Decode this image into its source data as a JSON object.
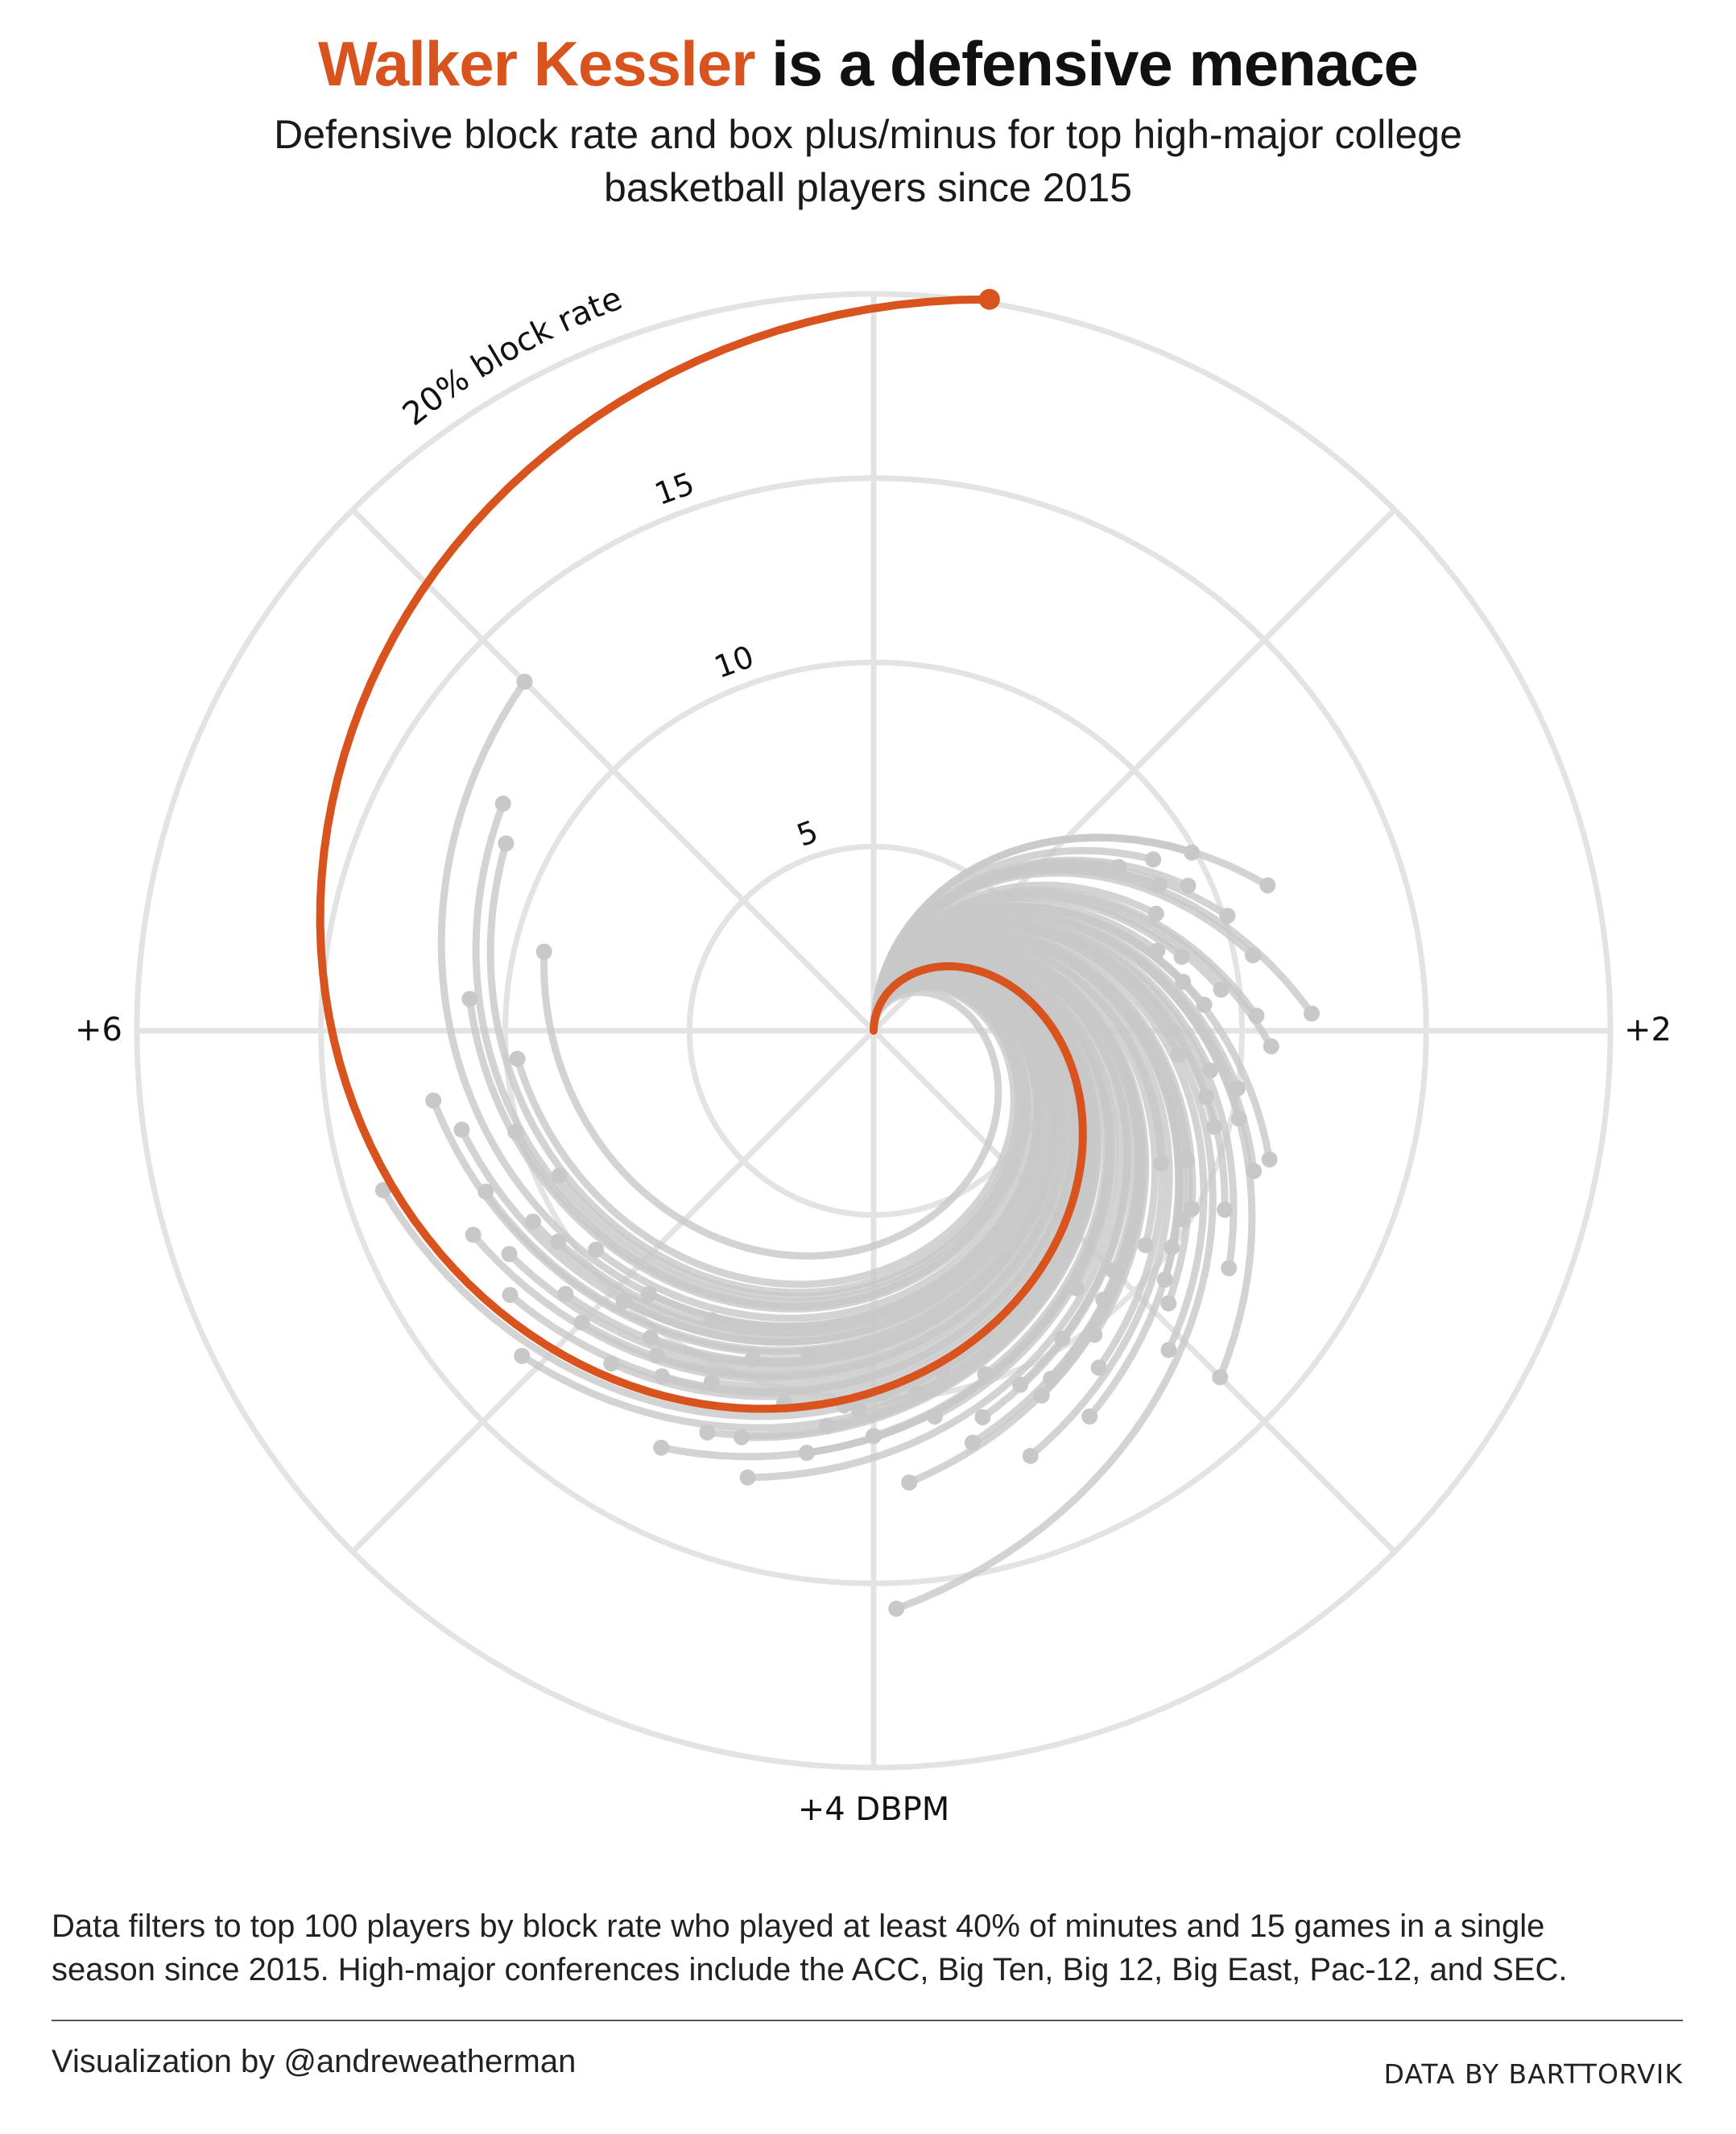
{
  "header": {
    "title_highlight": "Walker Kessler",
    "title_rest": " is a defensive menace",
    "subtitle_line1": "Defensive block rate and box plus/minus for top high-major college",
    "subtitle_line2": "basketball players since 2015"
  },
  "footer": {
    "note_line1": "Data filters to top 100 players by block rate who played at least 40% of minutes and 15 games in a single",
    "note_line2": "season since 2015. High-major conferences include the ACC, Big Ten, Big 12, Big East, Pac-12, and SEC.",
    "credit": "Visualization by @andreweatherman",
    "source": "DATA BY BARTTORVIK"
  },
  "colors": {
    "highlight": "#d9531e",
    "others": "#c8c8c8",
    "grid": "#e3e3e3",
    "text": "#111111"
  },
  "chart_data": {
    "type": "scatter",
    "title": "Walker Kessler is a defensive menace",
    "subtitle": "Defensive block rate and box plus/minus for top high-major college basketball players since 2015",
    "coordinate_system": "polar spiral (angle = DBPM, radius = block rate)",
    "radial_axis": {
      "label": "20% block rate",
      "range": [
        0,
        20
      ],
      "ticks": [
        5,
        10,
        15
      ]
    },
    "angular_axis": {
      "labels": [
        "+2",
        "+4 DBPM",
        "+6"
      ],
      "range": [
        0,
        8
      ]
    },
    "radial_tick_labels": [
      "5",
      "10",
      "15"
    ],
    "highlight": {
      "name": "Walker Kessler",
      "dbpm": 8.2,
      "block_rate": 20.1
    },
    "others": [
      {
        "dbpm": 7.0,
        "block_rate": 13.4
      },
      {
        "dbpm": 6.7,
        "block_rate": 11.8
      },
      {
        "dbpm": 6.6,
        "block_rate": 11.2
      },
      {
        "dbpm": 1.25,
        "block_rate": 8.0
      },
      {
        "dbpm": 1.2,
        "block_rate": 7.5
      },
      {
        "dbpm": 5.9,
        "block_rate": 9.7
      },
      {
        "dbpm": 5.8,
        "block_rate": 12.1
      },
      {
        "dbpm": 5.7,
        "block_rate": 11.5
      },
      {
        "dbpm": 5.6,
        "block_rate": 14.0
      },
      {
        "dbpm": 5.4,
        "block_rate": 12.2
      },
      {
        "dbpm": 5.5,
        "block_rate": 11.4
      },
      {
        "dbpm": 5.3,
        "block_rate": 11.6
      },
      {
        "dbpm": 5.2,
        "block_rate": 12.2
      },
      {
        "dbpm": 5.1,
        "block_rate": 11.0
      },
      {
        "dbpm": 5.0,
        "block_rate": 11.2
      },
      {
        "dbpm": 4.9,
        "block_rate": 9.4
      },
      {
        "dbpm": 4.8,
        "block_rate": 10.3
      },
      {
        "dbpm": 4.7,
        "block_rate": 11.0
      },
      {
        "dbpm": 4.6,
        "block_rate": 12.7
      },
      {
        "dbpm": 4.5,
        "block_rate": 11.8
      },
      {
        "dbpm": 4.4,
        "block_rate": 11.6
      },
      {
        "dbpm": 4.3,
        "block_rate": 10.4
      },
      {
        "dbpm": 4.2,
        "block_rate": 11.6
      },
      {
        "dbpm": 4.1,
        "block_rate": 10.2
      },
      {
        "dbpm": 4.0,
        "block_rate": 11.0
      },
      {
        "dbpm": 3.95,
        "block_rate": 15.7
      },
      {
        "dbpm": 3.9,
        "block_rate": 12.3
      },
      {
        "dbpm": 3.8,
        "block_rate": 10.6
      },
      {
        "dbpm": 3.7,
        "block_rate": 11.5
      },
      {
        "dbpm": 3.6,
        "block_rate": 9.8
      },
      {
        "dbpm": 3.5,
        "block_rate": 10.4
      },
      {
        "dbpm": 3.4,
        "block_rate": 10.6
      },
      {
        "dbpm": 3.3,
        "block_rate": 9.8
      },
      {
        "dbpm": 3.2,
        "block_rate": 10.2
      },
      {
        "dbpm": 3.1,
        "block_rate": 9.6
      },
      {
        "dbpm": 3.0,
        "block_rate": 13.3
      },
      {
        "dbpm": 2.9,
        "block_rate": 10.4
      },
      {
        "dbpm": 2.85,
        "block_rate": 9.4
      },
      {
        "dbpm": 2.8,
        "block_rate": 10.0
      },
      {
        "dbpm": 2.7,
        "block_rate": 9.8
      },
      {
        "dbpm": 2.6,
        "block_rate": 10.7
      },
      {
        "dbpm": 2.5,
        "block_rate": 9.2
      },
      {
        "dbpm": 2.4,
        "block_rate": 11.3
      },
      {
        "dbpm": 2.3,
        "block_rate": 10.2
      },
      {
        "dbpm": 2.25,
        "block_rate": 9.2
      },
      {
        "dbpm": 2.15,
        "block_rate": 9.2
      },
      {
        "dbpm": 2.1,
        "block_rate": 8.3
      },
      {
        "dbpm": 2.0,
        "block_rate": 8.1
      },
      {
        "dbpm": 1.95,
        "block_rate": 11.9
      },
      {
        "dbpm": 1.9,
        "block_rate": 9.0
      },
      {
        "dbpm": 1.85,
        "block_rate": 9.5
      },
      {
        "dbpm": 1.8,
        "block_rate": 8.5
      },
      {
        "dbpm": 1.7,
        "block_rate": 8.6
      },
      {
        "dbpm": 1.65,
        "block_rate": 8.0
      },
      {
        "dbpm": 1.6,
        "block_rate": 10.1
      },
      {
        "dbpm": 1.55,
        "block_rate": 11.4
      },
      {
        "dbpm": 1.5,
        "block_rate": 8.3
      },
      {
        "dbpm": 1.45,
        "block_rate": 9.4
      },
      {
        "dbpm": 1.4,
        "block_rate": 8.7
      },
      {
        "dbpm": 1.95,
        "block_rate": 10.4
      },
      {
        "dbpm": 2.05,
        "block_rate": 10.8
      },
      {
        "dbpm": 3.05,
        "block_rate": 11.8
      },
      {
        "dbpm": 3.45,
        "block_rate": 10.9
      },
      {
        "dbpm": 3.55,
        "block_rate": 12.3
      },
      {
        "dbpm": 4.05,
        "block_rate": 10.3
      },
      {
        "dbpm": 4.35,
        "block_rate": 12.6
      },
      {
        "dbpm": 4.55,
        "block_rate": 10.5
      },
      {
        "dbpm": 4.75,
        "block_rate": 10.6
      },
      {
        "dbpm": 5.25,
        "block_rate": 10.3
      },
      {
        "dbpm": 5.45,
        "block_rate": 9.4
      },
      {
        "dbpm": 6.1,
        "block_rate": 11.0
      },
      {
        "dbpm": 5.65,
        "block_rate": 10.1
      },
      {
        "dbpm": 2.35,
        "block_rate": 9.6
      },
      {
        "dbpm": 2.55,
        "block_rate": 8.6
      },
      {
        "dbpm": 2.95,
        "block_rate": 10.9
      },
      {
        "dbpm": 3.35,
        "block_rate": 12.0
      },
      {
        "dbpm": 3.75,
        "block_rate": 9.4
      },
      {
        "dbpm": 4.15,
        "block_rate": 10.8
      },
      {
        "dbpm": 4.45,
        "block_rate": 9.5
      },
      {
        "dbpm": 4.85,
        "block_rate": 11.5
      },
      {
        "dbpm": 5.15,
        "block_rate": 9.6
      },
      {
        "dbpm": 1.75,
        "block_rate": 10.5
      },
      {
        "dbpm": 2.65,
        "block_rate": 9.9
      },
      {
        "dbpm": 3.15,
        "block_rate": 8.9
      },
      {
        "dbpm": 3.65,
        "block_rate": 10.9
      },
      {
        "dbpm": 4.25,
        "block_rate": 9.0
      },
      {
        "dbpm": 4.65,
        "block_rate": 9.0
      },
      {
        "dbpm": 5.35,
        "block_rate": 10.6
      },
      {
        "dbpm": 6.3,
        "block_rate": 9.2
      },
      {
        "dbpm": 2.45,
        "block_rate": 11.0
      },
      {
        "dbpm": 2.75,
        "block_rate": 11.6
      },
      {
        "dbpm": 3.25,
        "block_rate": 11.0
      },
      {
        "dbpm": 3.85,
        "block_rate": 9.9
      },
      {
        "dbpm": 4.95,
        "block_rate": 10.0
      },
      {
        "dbpm": 5.05,
        "block_rate": 13.0
      },
      {
        "dbpm": 1.35,
        "block_rate": 9.9
      },
      {
        "dbpm": 1.3,
        "block_rate": 8.9
      },
      {
        "dbpm": 2.2,
        "block_rate": 10.0
      },
      {
        "dbpm": 3.0,
        "block_rate": 9.2
      }
    ]
  }
}
